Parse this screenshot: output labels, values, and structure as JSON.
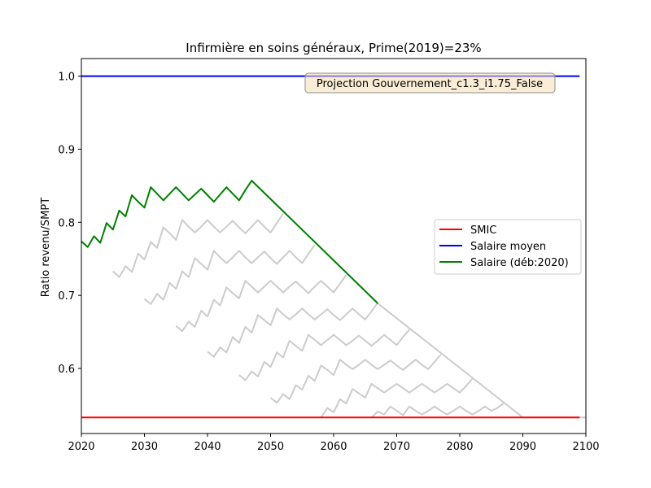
{
  "chart_data": {
    "type": "line",
    "title": "Infirmière en soins généraux, Prime(2019)=23%",
    "xlabel": "",
    "ylabel": "Ratio revenu/SMPT",
    "xlim": [
      2020,
      2100
    ],
    "ylim": [
      0.511,
      1.024
    ],
    "x_ticks": [
      2020,
      2030,
      2040,
      2050,
      2060,
      2070,
      2080,
      2090,
      2100
    ],
    "y_ticks": [
      0.6,
      0.7,
      0.8,
      0.9,
      1.0
    ],
    "grid": false,
    "legend_position": "center-right",
    "annotation": "Projection Gouvernement_c1.3_i1.75_False",
    "series": [
      {
        "name": "SMIC",
        "color": "#ff0000",
        "x": [
          2020,
          2099
        ],
        "y": [
          0.533,
          0.533
        ]
      },
      {
        "name": "Salaire moyen",
        "color": "#0000ff",
        "x": [
          2020,
          2099
        ],
        "y": [
          1.0,
          1.0
        ]
      },
      {
        "name": "Salaire (déb:2020)",
        "color": "#008000",
        "x": [
          2020,
          2021,
          2022,
          2023,
          2024,
          2025,
          2026,
          2027,
          2028,
          2029,
          2030,
          2031,
          2032,
          2033,
          2034,
          2035,
          2036,
          2037,
          2038,
          2039,
          2040,
          2041,
          2042,
          2043,
          2044,
          2045,
          2046,
          2047,
          2067
        ],
        "y": [
          0.774,
          0.766,
          0.781,
          0.772,
          0.799,
          0.79,
          0.816,
          0.808,
          0.837,
          0.828,
          0.82,
          0.848,
          0.839,
          0.83,
          0.839,
          0.848,
          0.839,
          0.83,
          0.838,
          0.846,
          0.837,
          0.828,
          0.838,
          0.848,
          0.839,
          0.83,
          0.844,
          0.857,
          0.689
        ]
      }
    ],
    "background_series": [
      {
        "color": "#cccccc",
        "x": [
          2025,
          2026,
          2027,
          2028,
          2029,
          2030,
          2031,
          2032,
          2033,
          2034,
          2035,
          2036,
          2037,
          2038,
          2039,
          2040,
          2041,
          2042,
          2043,
          2044,
          2045,
          2046,
          2047,
          2048,
          2049,
          2050,
          2051,
          2052
        ],
        "y": [
          0.733,
          0.725,
          0.74,
          0.732,
          0.757,
          0.749,
          0.773,
          0.765,
          0.793,
          0.785,
          0.776,
          0.803,
          0.794,
          0.786,
          0.794,
          0.803,
          0.794,
          0.786,
          0.794,
          0.802,
          0.793,
          0.785,
          0.794,
          0.803,
          0.794,
          0.786,
          0.799,
          0.812
        ]
      },
      {
        "color": "#cccccc",
        "x": [
          2030,
          2031,
          2032,
          2033,
          2034,
          2035,
          2036,
          2037,
          2038,
          2039,
          2040,
          2041,
          2042,
          2043,
          2044,
          2045,
          2046,
          2047,
          2048,
          2049,
          2050,
          2051,
          2052,
          2053,
          2054,
          2055,
          2056,
          2057
        ],
        "y": [
          0.695,
          0.688,
          0.702,
          0.694,
          0.717,
          0.709,
          0.733,
          0.725,
          0.751,
          0.743,
          0.735,
          0.761,
          0.752,
          0.744,
          0.752,
          0.761,
          0.752,
          0.744,
          0.752,
          0.76,
          0.751,
          0.743,
          0.752,
          0.761,
          0.752,
          0.744,
          0.757,
          0.769
        ]
      },
      {
        "color": "#cccccc",
        "x": [
          2035,
          2036,
          2037,
          2038,
          2039,
          2040,
          2041,
          2042,
          2043,
          2044,
          2045,
          2046,
          2047,
          2048,
          2049,
          2050,
          2051,
          2052,
          2053,
          2054,
          2055,
          2056,
          2057,
          2058,
          2059,
          2060,
          2061,
          2062
        ],
        "y": [
          0.658,
          0.651,
          0.664,
          0.657,
          0.679,
          0.671,
          0.694,
          0.686,
          0.711,
          0.703,
          0.696,
          0.72,
          0.712,
          0.704,
          0.712,
          0.72,
          0.712,
          0.704,
          0.712,
          0.719,
          0.711,
          0.703,
          0.712,
          0.72,
          0.712,
          0.704,
          0.716,
          0.728
        ]
      },
      {
        "color": "#cccccc",
        "x": [
          2040,
          2041,
          2042,
          2043,
          2044,
          2045,
          2046,
          2047,
          2048,
          2049,
          2050,
          2051,
          2052,
          2053,
          2054,
          2055,
          2056,
          2057,
          2058,
          2059,
          2060,
          2061,
          2062,
          2063,
          2064,
          2065,
          2066,
          2067
        ],
        "y": [
          0.623,
          0.616,
          0.629,
          0.622,
          0.643,
          0.635,
          0.657,
          0.649,
          0.673,
          0.666,
          0.659,
          0.682,
          0.674,
          0.667,
          0.674,
          0.682,
          0.674,
          0.667,
          0.674,
          0.681,
          0.673,
          0.666,
          0.674,
          0.682,
          0.674,
          0.667,
          0.678,
          0.69
        ]
      },
      {
        "color": "#cccccc",
        "x": [
          2045,
          2046,
          2047,
          2048,
          2049,
          2050,
          2051,
          2052,
          2053,
          2054,
          2055,
          2056,
          2057,
          2058,
          2059,
          2060,
          2061,
          2062,
          2063,
          2064,
          2065,
          2066,
          2067,
          2068,
          2069,
          2070,
          2071,
          2072
        ],
        "y": [
          0.591,
          0.584,
          0.596,
          0.589,
          0.609,
          0.602,
          0.622,
          0.615,
          0.638,
          0.631,
          0.624,
          0.646,
          0.639,
          0.632,
          0.639,
          0.646,
          0.639,
          0.632,
          0.638,
          0.645,
          0.638,
          0.631,
          0.638,
          0.646,
          0.639,
          0.632,
          0.643,
          0.653
        ]
      },
      {
        "color": "#cccccc",
        "x": [
          2050,
          2051,
          2052,
          2053,
          2054,
          2055,
          2056,
          2057,
          2058,
          2059,
          2060,
          2061,
          2062,
          2063,
          2064,
          2065,
          2066,
          2067,
          2068,
          2069,
          2070,
          2071,
          2072,
          2073,
          2074,
          2075,
          2076,
          2077
        ],
        "y": [
          0.56,
          0.553,
          0.565,
          0.558,
          0.577,
          0.571,
          0.59,
          0.583,
          0.604,
          0.598,
          0.591,
          0.612,
          0.605,
          0.599,
          0.605,
          0.612,
          0.605,
          0.599,
          0.605,
          0.611,
          0.604,
          0.598,
          0.605,
          0.612,
          0.605,
          0.599,
          0.609,
          0.619
        ]
      },
      {
        "color": "#cccccc",
        "x": [
          2058,
          2059,
          2060,
          2061,
          2062,
          2063,
          2064,
          2065,
          2066,
          2067,
          2068,
          2069,
          2070,
          2071,
          2072,
          2073,
          2074,
          2075,
          2076,
          2077,
          2078,
          2079,
          2080,
          2081,
          2082
        ],
        "y": [
          0.533,
          0.546,
          0.54,
          0.558,
          0.552,
          0.572,
          0.566,
          0.56,
          0.579,
          0.573,
          0.567,
          0.573,
          0.579,
          0.573,
          0.567,
          0.573,
          0.579,
          0.573,
          0.567,
          0.573,
          0.579,
          0.573,
          0.567,
          0.576,
          0.586
        ]
      },
      {
        "color": "#cccccc",
        "x": [
          2066,
          2067,
          2068,
          2069,
          2070,
          2071,
          2072,
          2073,
          2074,
          2075,
          2076,
          2077,
          2078,
          2079,
          2080,
          2081,
          2082,
          2083,
          2084,
          2085,
          2086,
          2087
        ],
        "y": [
          0.533,
          0.541,
          0.537,
          0.548,
          0.542,
          0.536,
          0.548,
          0.542,
          0.537,
          0.542,
          0.548,
          0.542,
          0.537,
          0.542,
          0.548,
          0.542,
          0.537,
          0.542,
          0.548,
          0.542,
          0.546,
          0.553
        ]
      },
      {
        "color": "#cccccc",
        "x": [
          2047,
          2067,
          2090
        ],
        "y": [
          0.857,
          0.689,
          0.533
        ]
      },
      {
        "color": "#cccccc",
        "x": [
          2090,
          2100
        ],
        "y": [
          0.533,
          0.533
        ]
      }
    ]
  }
}
